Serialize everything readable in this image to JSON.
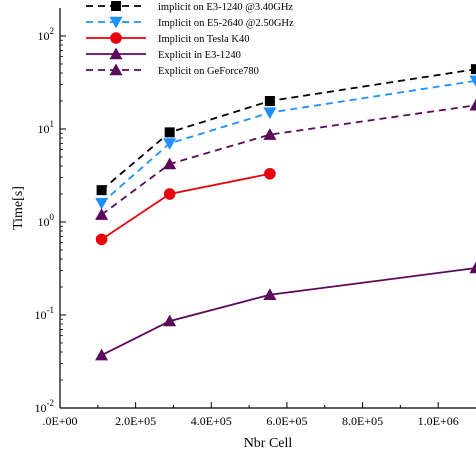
{
  "chart_data": {
    "type": "line",
    "xlabel": "Nbr Cell",
    "ylabel": "Time[s]",
    "xlim": [
      0,
      1100000
    ],
    "ylim": [
      0.01,
      200
    ],
    "yscale": "log",
    "grid": false,
    "legend_position": "top-left",
    "x_ticks": [
      {
        "value": 0,
        "label": ".0E+00"
      },
      {
        "value": 200000,
        "label": "2.0E+05"
      },
      {
        "value": 400000,
        "label": "4.0E+05"
      },
      {
        "value": 600000,
        "label": "6.0E+05"
      },
      {
        "value": 800000,
        "label": "8.0E+05"
      },
      {
        "value": 1000000,
        "label": "1.0E+06"
      }
    ],
    "y_ticks": [
      {
        "value": 0.01,
        "base": "10",
        "exp": "-2"
      },
      {
        "value": 0.1,
        "base": "10",
        "exp": "-1"
      },
      {
        "value": 1,
        "base": "10",
        "exp": "0"
      },
      {
        "value": 10,
        "base": "10",
        "exp": "1"
      },
      {
        "value": 100,
        "base": "10",
        "exp": "2"
      }
    ],
    "series": [
      {
        "name": "implicit on E3-1240 @3.40GHz",
        "color": "#000000",
        "dash": "dashed",
        "marker": "square",
        "x": [
          110000,
          290000,
          555000,
          1100000
        ],
        "y": [
          2.2,
          9.2,
          20,
          44
        ]
      },
      {
        "name": "Implicit on E5-2640 @2.50GHz",
        "color": "#1e90ff",
        "dash": "dashed",
        "marker": "triangle-down",
        "x": [
          110000,
          290000,
          555000,
          1100000
        ],
        "y": [
          1.6,
          7.0,
          15,
          33
        ]
      },
      {
        "name": "Implicit on Tesla K40",
        "color": "#e8000b",
        "dash": "solid",
        "marker": "circle",
        "x": [
          110000,
          290000,
          555000
        ],
        "y": [
          0.65,
          2.0,
          3.3
        ]
      },
      {
        "name": "Explicit in E3-1240",
        "color": "#5b0a5b",
        "dash": "solid",
        "marker": "triangle-up",
        "x": [
          110000,
          290000,
          555000,
          1100000
        ],
        "y": [
          0.037,
          0.086,
          0.165,
          0.32
        ]
      },
      {
        "name": "Explicit on GeForce780",
        "color": "#5b0a5b",
        "dash": "dashed",
        "marker": "triangle-up",
        "x": [
          110000,
          290000,
          555000,
          1100000
        ],
        "y": [
          1.2,
          4.2,
          8.7,
          18
        ]
      }
    ]
  }
}
